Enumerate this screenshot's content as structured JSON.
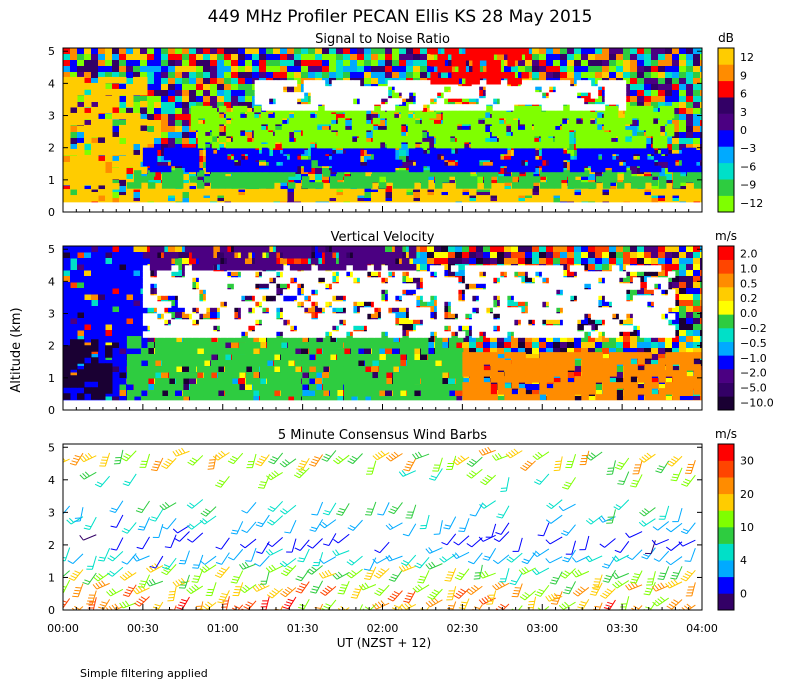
{
  "title": "449 MHz Profiler PECAN Ellis KS 28 May 2015",
  "footnote": "Simple filtering applied",
  "ylabel": "Altitude (km)",
  "xlabel": "UT  (NZST + 12)",
  "x_ticks": [
    "00:00",
    "00:30",
    "01:00",
    "01:30",
    "02:00",
    "02:30",
    "03:00",
    "03:30",
    "04:00"
  ],
  "y_ticks": [
    "0",
    "1",
    "2",
    "3",
    "4",
    "5"
  ],
  "chart_data": [
    {
      "type": "heatmap",
      "title": "Signal to Noise Ratio",
      "colorbar_unit": "dB",
      "x_range": [
        "00:00",
        "04:00"
      ],
      "y_range_km": [
        0,
        5.1
      ],
      "levels": [
        -12,
        -9,
        -6,
        -3,
        0,
        3,
        6,
        9,
        12
      ],
      "level_labels": [
        "−12",
        "−9",
        "−6",
        "−3",
        "0",
        "3",
        "6",
        "9",
        "12"
      ],
      "colors": [
        "#7fff00",
        "#2ecc40",
        "#00e0c8",
        "#00aaff",
        "#0000ff",
        "#4b0082",
        "#330066",
        "#ff0000",
        "#ff8c00",
        "#ffcc00"
      ],
      "fields": [
        {
          "x": [
            0.0,
            4.0
          ],
          "y": [
            0.3,
            0.9
          ],
          "level": "#ffcc00"
        },
        {
          "x": [
            0.0,
            0.5
          ],
          "y": [
            0.9,
            4.2
          ],
          "level": "#ffcc00"
        },
        {
          "x": [
            0.4,
            4.0
          ],
          "y": [
            0.9,
            1.3
          ],
          "level": "#2ecc40"
        },
        {
          "x": [
            0.5,
            4.0
          ],
          "y": [
            1.3,
            2.0
          ],
          "level": "#0000ff"
        },
        {
          "x": [
            0.8,
            3.8
          ],
          "y": [
            2.0,
            3.3
          ],
          "level": "#7fff00"
        },
        {
          "x": [
            1.2,
            3.5
          ],
          "y": [
            3.3,
            4.1
          ],
          "level": "#ffffff"
        },
        {
          "x": [
            2.3,
            2.9
          ],
          "y": [
            4.0,
            5.1
          ],
          "level": "#ff0000"
        }
      ]
    },
    {
      "type": "heatmap",
      "title": "Vertical Velocity",
      "colorbar_unit": "m/s",
      "x_range": [
        "00:00",
        "04:00"
      ],
      "y_range_km": [
        0,
        5.1
      ],
      "levels": [
        -10.0,
        -5.0,
        -2.0,
        -1.0,
        -0.5,
        -0.2,
        0.0,
        0.2,
        0.5,
        1.0,
        2.0
      ],
      "level_labels": [
        "−10.0",
        "−5.0",
        "−2.0",
        "−1.0",
        "−0.5",
        "−0.2",
        "0.0",
        "0.2",
        "0.5",
        "1.0",
        "2.0"
      ],
      "colors": [
        "#1a0033",
        "#330066",
        "#4b0082",
        "#0000ff",
        "#00aaff",
        "#00e0c8",
        "#2ecc40",
        "#ffff00",
        "#ffcc00",
        "#ff8c00",
        "#ff4500",
        "#ff0000"
      ],
      "fields": [
        {
          "x": [
            0.0,
            0.5
          ],
          "y": [
            0.3,
            5.1
          ],
          "level": "#0000ff"
        },
        {
          "x": [
            0.0,
            0.3
          ],
          "y": [
            0.5,
            2.2
          ],
          "level": "#1a0033"
        },
        {
          "x": [
            0.4,
            2.5
          ],
          "y": [
            0.3,
            2.3
          ],
          "level": "#2ecc40"
        },
        {
          "x": [
            2.5,
            4.0
          ],
          "y": [
            0.3,
            1.8
          ],
          "level": "#ff8c00"
        },
        {
          "x": [
            0.5,
            3.8
          ],
          "y": [
            2.3,
            4.5
          ],
          "level": "#ffffff"
        },
        {
          "x": [
            0.5,
            2.2
          ],
          "y": [
            4.5,
            5.1
          ],
          "level": "#4b0082"
        }
      ]
    },
    {
      "type": "scatter",
      "title": "5 Minute Consensus Wind Barbs",
      "colorbar_unit": "m/s",
      "x_range": [
        "00:00",
        "04:00"
      ],
      "y_range_km": [
        0,
        5.1
      ],
      "levels": [
        0,
        4,
        10,
        20,
        30
      ],
      "level_labels": [
        "0",
        "4",
        "10",
        "20",
        "30"
      ],
      "colors": [
        "#330066",
        "#0000ff",
        "#00aaff",
        "#00e0c8",
        "#2ecc40",
        "#7fff00",
        "#ffcc00",
        "#ff8c00",
        "#ff4500",
        "#ff0000"
      ],
      "wind_speed_profile": [
        {
          "altitude_km": 0.25,
          "speed_ms": 22
        },
        {
          "altitude_km": 0.75,
          "speed_ms": 20
        },
        {
          "altitude_km": 1.25,
          "speed_ms": 15
        },
        {
          "altitude_km": 1.75,
          "speed_ms": 8
        },
        {
          "altitude_km": 2.25,
          "speed_ms": 4
        },
        {
          "altitude_km": 2.75,
          "speed_ms": 8
        },
        {
          "altitude_km": 3.25,
          "speed_ms": 10
        },
        {
          "altitude_km": 4.25,
          "speed_ms": 14
        },
        {
          "altitude_km": 4.75,
          "speed_ms": 18
        }
      ]
    }
  ]
}
